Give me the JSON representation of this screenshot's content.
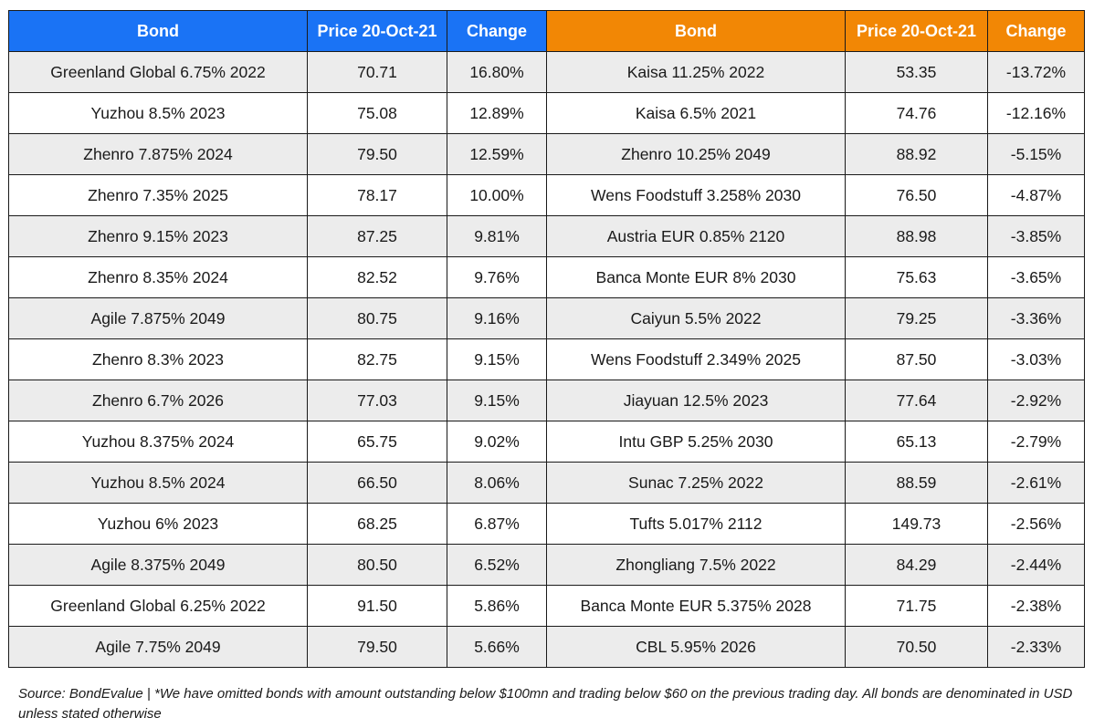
{
  "table": {
    "headers": [
      {
        "label": "Bond",
        "side": "gainers"
      },
      {
        "label": "Price 20-Oct-21",
        "side": "gainers"
      },
      {
        "label": "Change",
        "side": "gainers"
      },
      {
        "label": "Bond",
        "side": "losers"
      },
      {
        "label": "Price 20-Oct-21",
        "side": "losers"
      },
      {
        "label": "Change",
        "side": "losers"
      }
    ],
    "rows": [
      [
        "Greenland Global 6.75% 2022",
        "70.71",
        "16.80%",
        "Kaisa 11.25% 2022",
        "53.35",
        "-13.72%"
      ],
      [
        "Yuzhou 8.5% 2023",
        "75.08",
        "12.89%",
        "Kaisa 6.5% 2021",
        "74.76",
        "-12.16%"
      ],
      [
        "Zhenro 7.875% 2024",
        "79.50",
        "12.59%",
        "Zhenro 10.25% 2049",
        "88.92",
        "-5.15%"
      ],
      [
        "Zhenro 7.35% 2025",
        "78.17",
        "10.00%",
        "Wens Foodstuff 3.258% 2030",
        "76.50",
        "-4.87%"
      ],
      [
        "Zhenro 9.15% 2023",
        "87.25",
        "9.81%",
        "Austria EUR 0.85% 2120",
        "88.98",
        "-3.85%"
      ],
      [
        "Zhenro 8.35% 2024",
        "82.52",
        "9.76%",
        "Banca Monte EUR 8% 2030",
        "75.63",
        "-3.65%"
      ],
      [
        "Agile 7.875% 2049",
        "80.75",
        "9.16%",
        "Caiyun 5.5% 2022",
        "79.25",
        "-3.36%"
      ],
      [
        "Zhenro 8.3% 2023",
        "82.75",
        "9.15%",
        "Wens Foodstuff 2.349% 2025",
        "87.50",
        "-3.03%"
      ],
      [
        "Zhenro 6.7% 2026",
        "77.03",
        "9.15%",
        "Jiayuan 12.5% 2023",
        "77.64",
        "-2.92%"
      ],
      [
        "Yuzhou 8.375% 2024",
        "65.75",
        "9.02%",
        "Intu GBP 5.25% 2030",
        "65.13",
        "-2.79%"
      ],
      [
        "Yuzhou 8.5% 2024",
        "66.50",
        "8.06%",
        "Sunac 7.25% 2022",
        "88.59",
        "-2.61%"
      ],
      [
        "Yuzhou 6% 2023",
        "68.25",
        "6.87%",
        "Tufts 5.017% 2112",
        "149.73",
        "-2.56%"
      ],
      [
        "Agile 8.375% 2049",
        "80.50",
        "6.52%",
        "Zhongliang 7.5% 2022",
        "84.29",
        "-2.44%"
      ],
      [
        "Greenland Global 6.25% 2022",
        "91.50",
        "5.86%",
        "Banca Monte EUR 5.375% 2028",
        "71.75",
        "-2.38%"
      ],
      [
        "Agile 7.75% 2049",
        "79.50",
        "5.66%",
        "CBL 5.95% 2026",
        "70.50",
        "-2.33%"
      ]
    ]
  },
  "colors": {
    "header_left": "#1a73f5",
    "header_right": "#f28705",
    "row_shade": "#ececec",
    "row_plain": "#ffffff"
  },
  "footnote": "Source: BondEvalue | *We have omitted bonds with amount outstanding below $100mn and trading below $60 on the previous trading day. All bonds are denominated in USD unless stated otherwise"
}
